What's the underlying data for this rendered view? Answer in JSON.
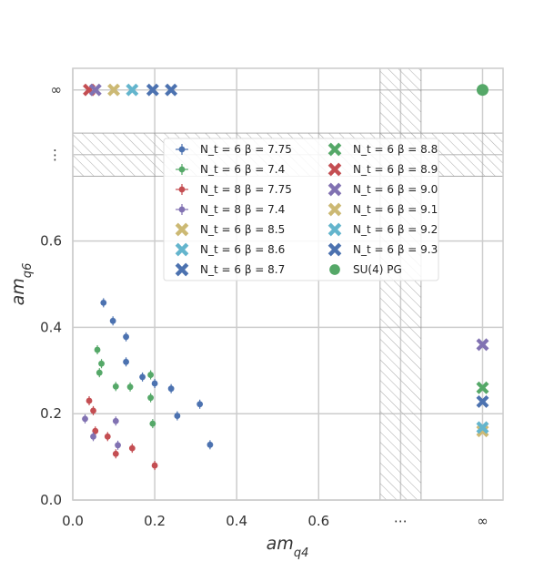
{
  "chart_data": {
    "type": "scatter",
    "xlabel": "am_{q4}",
    "ylabel": "am_{q6}",
    "xlim": [
      0.0,
      1.05
    ],
    "ylim": [
      0.0,
      1.0
    ],
    "grid": true,
    "legend_position": "upper-center",
    "x_ticks": [
      {
        "value": 0.0,
        "label": "0.0"
      },
      {
        "value": 0.2,
        "label": "0.2"
      },
      {
        "value": 0.4,
        "label": "0.4"
      },
      {
        "value": 0.6,
        "label": "0.6"
      },
      {
        "value": 0.8,
        "label": "⋯"
      },
      {
        "value": 1.0,
        "label": "∞"
      }
    ],
    "y_ticks": [
      {
        "value": 0.0,
        "label": "0.0"
      },
      {
        "value": 0.2,
        "label": "0.2"
      },
      {
        "value": 0.4,
        "label": "0.4"
      },
      {
        "value": 0.6,
        "label": "0.6"
      },
      {
        "value": 0.8,
        "label": "⋮"
      },
      {
        "value": 0.95,
        "label": "∞"
      }
    ],
    "hatched_bands": [
      {
        "axis": "x",
        "from": 0.75,
        "to": 0.85
      },
      {
        "axis": "y",
        "from": 0.75,
        "to": 0.85
      }
    ],
    "series": [
      {
        "name": "N_t = 6  β = 7.75",
        "marker": "dot",
        "color": "#4c72b0",
        "points": [
          [
            0.075,
            0.457
          ],
          [
            0.098,
            0.415
          ],
          [
            0.13,
            0.378
          ],
          [
            0.13,
            0.32
          ],
          [
            0.17,
            0.285
          ],
          [
            0.2,
            0.27
          ],
          [
            0.24,
            0.258
          ],
          [
            0.255,
            0.195
          ],
          [
            0.31,
            0.222
          ],
          [
            0.335,
            0.128
          ]
        ]
      },
      {
        "name": "N_t = 6  β = 7.4",
        "marker": "dot",
        "color": "#55a868",
        "points": [
          [
            0.06,
            0.348
          ],
          [
            0.07,
            0.316
          ],
          [
            0.065,
            0.295
          ],
          [
            0.105,
            0.263
          ],
          [
            0.14,
            0.262
          ],
          [
            0.19,
            0.29
          ],
          [
            0.19,
            0.237
          ],
          [
            0.195,
            0.177
          ]
        ]
      },
      {
        "name": "N_t = 8  β = 7.75",
        "marker": "dot",
        "color": "#c44e52",
        "points": [
          [
            0.04,
            0.23
          ],
          [
            0.05,
            0.207
          ],
          [
            0.055,
            0.16
          ],
          [
            0.085,
            0.147
          ],
          [
            0.105,
            0.107
          ],
          [
            0.145,
            0.12
          ],
          [
            0.2,
            0.08
          ]
        ]
      },
      {
        "name": "N_t = 8  β = 7.4",
        "marker": "dot",
        "color": "#8172b2",
        "points": [
          [
            0.03,
            0.188
          ],
          [
            0.05,
            0.147
          ],
          [
            0.105,
            0.183
          ],
          [
            0.11,
            0.127
          ]
        ]
      },
      {
        "name": "N_t = 6  β = 8.5",
        "marker": "x",
        "color": "#ccb974",
        "points": [
          [
            0.1,
            0.95
          ],
          [
            1.0,
            0.16
          ]
        ]
      },
      {
        "name": "N_t = 6  β = 8.6",
        "marker": "x",
        "color": "#64b5cd",
        "points": [
          [
            0.145,
            0.95
          ],
          [
            1.0,
            0.168
          ]
        ]
      },
      {
        "name": "N_t = 6  β = 8.7",
        "marker": "x",
        "color": "#4c72b0",
        "points": [
          [
            0.24,
            0.95
          ],
          [
            1.0,
            0.228
          ]
        ]
      },
      {
        "name": "N_t = 6  β = 8.8",
        "marker": "x",
        "color": "#55a868",
        "points": [
          [
            1.0,
            0.26
          ]
        ]
      },
      {
        "name": "N_t = 6  β = 8.9",
        "marker": "x",
        "color": "#c44e52",
        "points": [
          [
            0.04,
            0.95
          ]
        ]
      },
      {
        "name": "N_t = 6  β = 9.0",
        "marker": "x",
        "color": "#8172b2",
        "points": [
          [
            0.055,
            0.95
          ],
          [
            1.0,
            0.36
          ]
        ]
      },
      {
        "name": "N_t = 6  β = 9.1",
        "marker": "x",
        "color": "#ccb974",
        "points": []
      },
      {
        "name": "N_t = 6  β = 9.2",
        "marker": "x",
        "color": "#64b5cd",
        "points": []
      },
      {
        "name": "N_t = 6  β = 9.3",
        "marker": "x",
        "color": "#4c72b0",
        "points": [
          [
            0.195,
            0.95
          ]
        ]
      },
      {
        "name": "SU(4) PG",
        "marker": "circle",
        "color": "#55a868",
        "points": [
          [
            1.0,
            0.95
          ]
        ]
      }
    ]
  }
}
